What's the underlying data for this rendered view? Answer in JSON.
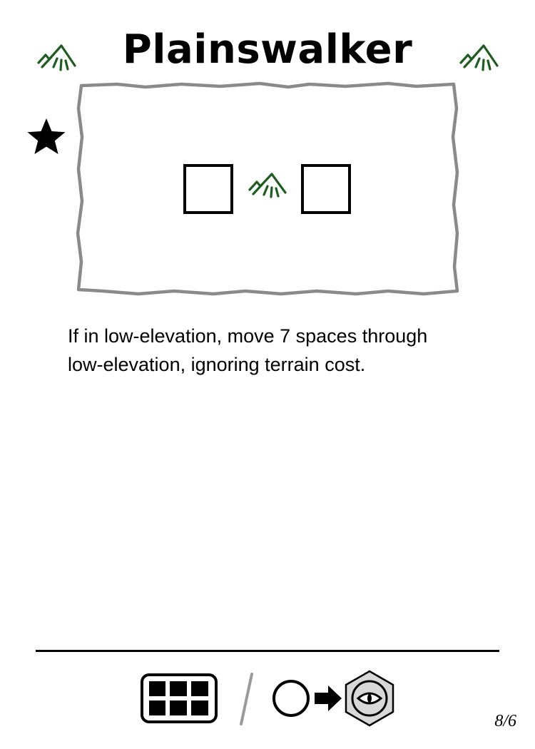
{
  "card": {
    "title": "Plainswalker",
    "ability_text": "If in low-elevation, move 7 spaces through low-elevation, ignoring terrain cost.",
    "page_number": "8/6"
  },
  "icons": {
    "top_left": "grass-terrain-icon",
    "top_right": "grass-terrain-icon",
    "side": "star-icon",
    "art_left": "empty-square-icon",
    "art_center": "grass-terrain-icon",
    "art_right": "empty-square-icon",
    "footer": [
      "grid-card-icon",
      "slash-divider",
      "circle-icon",
      "arrow-right-icon",
      "hex-eye-icon"
    ]
  },
  "colors": {
    "terrain_green": "#1f5c1f",
    "frame_gray": "#8a8a8a",
    "ink": "#000000"
  }
}
